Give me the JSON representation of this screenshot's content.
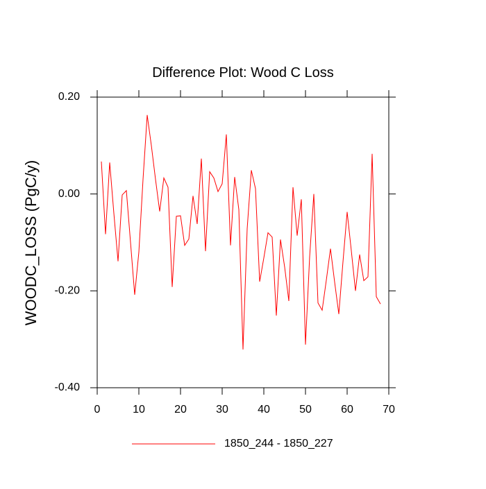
{
  "chart_data": {
    "type": "line",
    "title": "Difference Plot: Wood C Loss",
    "y_label": "WOODC_LOSS  (PgC/y)",
    "x": [
      1,
      2,
      3,
      4,
      5,
      6,
      7,
      8,
      9,
      10,
      11,
      12,
      13,
      14,
      15,
      16,
      17,
      18,
      19,
      20,
      21,
      22,
      23,
      24,
      25,
      26,
      27,
      28,
      29,
      30,
      31,
      32,
      33,
      34,
      35,
      36,
      37,
      38,
      39,
      40,
      41,
      42,
      43,
      44,
      45,
      46,
      47,
      48,
      49,
      50,
      51,
      52,
      53,
      54,
      55,
      56,
      57,
      58,
      59,
      60,
      61,
      62,
      63,
      64,
      65,
      66,
      67,
      68
    ],
    "series": [
      {
        "name": "1850_244 - 1850_227",
        "color": "#ff0000",
        "values": [
          0.067,
          -0.083,
          0.065,
          -0.04,
          -0.139,
          -0.002,
          0.007,
          -0.1,
          -0.208,
          -0.12,
          0.03,
          0.163,
          0.1,
          0.03,
          -0.036,
          0.033,
          0.014,
          -0.192,
          -0.046,
          -0.045,
          -0.106,
          -0.093,
          -0.004,
          -0.062,
          0.073,
          -0.118,
          0.046,
          0.033,
          0.005,
          0.021,
          0.123,
          -0.106,
          0.035,
          -0.032,
          -0.321,
          -0.072,
          0.049,
          0.011,
          -0.181,
          -0.132,
          -0.08,
          -0.089,
          -0.251,
          -0.094,
          -0.151,
          -0.221,
          0.014,
          -0.086,
          -0.011,
          -0.311,
          -0.129,
          0.0,
          -0.225,
          -0.24,
          -0.178,
          -0.113,
          -0.182,
          -0.248,
          -0.14,
          -0.037,
          -0.117,
          -0.2,
          -0.125,
          -0.179,
          -0.171,
          0.083,
          -0.212,
          -0.227
        ]
      }
    ],
    "xlim": [
      0,
      70
    ],
    "xticks": [
      0,
      10,
      20,
      30,
      40,
      50,
      60,
      70
    ],
    "ylim": [
      -0.4,
      0.2
    ],
    "yticks": [
      {
        "value": -0.4,
        "label": "-0.40"
      },
      {
        "value": -0.2,
        "label": "-0.20"
      },
      {
        "value": 0,
        "label": "0.00"
      },
      {
        "value": 0.2,
        "label": "0.20"
      }
    ],
    "grid": false,
    "legend": "bottom"
  }
}
